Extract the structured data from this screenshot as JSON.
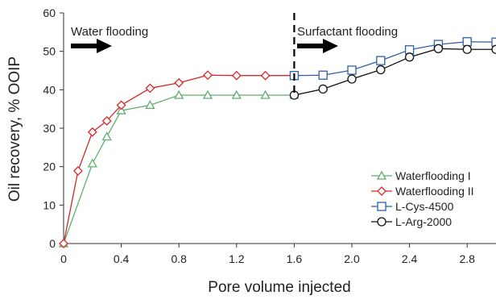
{
  "chart_data": {
    "type": "line",
    "xlabel": "Pore volume injected",
    "ylabel": "Oil recovery, % OOIP",
    "xlim": [
      0,
      3.0
    ],
    "ylim": [
      0,
      60
    ],
    "x_ticks": [
      "0",
      "0.4",
      "0.8",
      "1.2",
      "1.6",
      "2.0",
      "2.4",
      "2.8"
    ],
    "y_ticks": [
      "0",
      "10",
      "20",
      "30",
      "40",
      "50",
      "60"
    ],
    "grid": false,
    "legend_position": "bottom-right",
    "annotations": {
      "left": "Water flooding",
      "right": "Surfactant flooding",
      "divider_x": 1.6
    },
    "series": [
      {
        "name": "Waterflooding I",
        "color": "#5fae6e",
        "marker": "triangle",
        "x": [
          0,
          0.2,
          0.3,
          0.4,
          0.6,
          0.8,
          1.0,
          1.2,
          1.4,
          1.6
        ],
        "y": [
          0,
          20.8,
          27.8,
          34.6,
          36.0,
          38.6,
          38.6,
          38.6,
          38.6,
          38.6
        ]
      },
      {
        "name": "Waterflooding II",
        "color": "#d62728",
        "marker": "diamond",
        "x": [
          0,
          0.1,
          0.2,
          0.3,
          0.4,
          0.6,
          0.8,
          1.0,
          1.2,
          1.4,
          1.6
        ],
        "y": [
          0,
          18.9,
          29.0,
          31.9,
          36.0,
          40.4,
          41.8,
          43.8,
          43.7,
          43.7,
          43.7
        ]
      },
      {
        "name": "L-Cys-4500",
        "color": "#2f5fa7",
        "marker": "square",
        "x": [
          1.6,
          1.8,
          2.0,
          2.2,
          2.4,
          2.6,
          2.8,
          3.0
        ],
        "y": [
          43.7,
          43.8,
          45.1,
          47.6,
          50.4,
          51.8,
          52.5,
          52.4
        ]
      },
      {
        "name": "L-Arg-2000",
        "color": "#111111",
        "marker": "circle",
        "x": [
          1.6,
          1.8,
          2.0,
          2.2,
          2.4,
          2.6,
          2.8,
          3.0
        ],
        "y": [
          38.6,
          40.2,
          42.8,
          45.2,
          48.5,
          50.7,
          50.5,
          50.5
        ]
      }
    ]
  }
}
